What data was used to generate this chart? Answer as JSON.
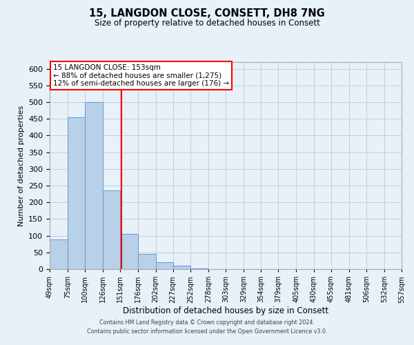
{
  "title": "15, LANGDON CLOSE, CONSETT, DH8 7NG",
  "subtitle": "Size of property relative to detached houses in Consett",
  "xlabel": "Distribution of detached houses by size in Consett",
  "ylabel": "Number of detached properties",
  "bar_edges": [
    49,
    75,
    100,
    126,
    151,
    176,
    202,
    227,
    252,
    278,
    303,
    329,
    354,
    379,
    405,
    430,
    455,
    481,
    506,
    532,
    557
  ],
  "bar_heights": [
    88,
    455,
    500,
    235,
    105,
    45,
    20,
    10,
    2,
    0,
    1,
    0,
    1,
    1,
    0,
    0,
    0,
    0,
    0,
    1
  ],
  "bar_color": "#b8d0e8",
  "bar_edge_color": "#5b9bd5",
  "vline_x": 153,
  "vline_color": "red",
  "ylim": [
    0,
    620
  ],
  "yticks": [
    0,
    50,
    100,
    150,
    200,
    250,
    300,
    350,
    400,
    450,
    500,
    550,
    600
  ],
  "tick_labels": [
    "49sqm",
    "75sqm",
    "100sqm",
    "126sqm",
    "151sqm",
    "176sqm",
    "202sqm",
    "227sqm",
    "252sqm",
    "278sqm",
    "303sqm",
    "329sqm",
    "354sqm",
    "379sqm",
    "405sqm",
    "430sqm",
    "455sqm",
    "481sqm",
    "506sqm",
    "532sqm",
    "557sqm"
  ],
  "annotation_box_text": [
    "15 LANGDON CLOSE: 153sqm",
    "← 88% of detached houses are smaller (1,275)",
    "12% of semi-detached houses are larger (176) →"
  ],
  "annotation_box_color": "white",
  "annotation_box_edge_color": "red",
  "grid_color": "#c0d0e0",
  "background_color": "#e8f0f8",
  "footer_line1": "Contains HM Land Registry data © Crown copyright and database right 2024.",
  "footer_line2": "Contains public sector information licensed under the Open Government Licence v3.0."
}
